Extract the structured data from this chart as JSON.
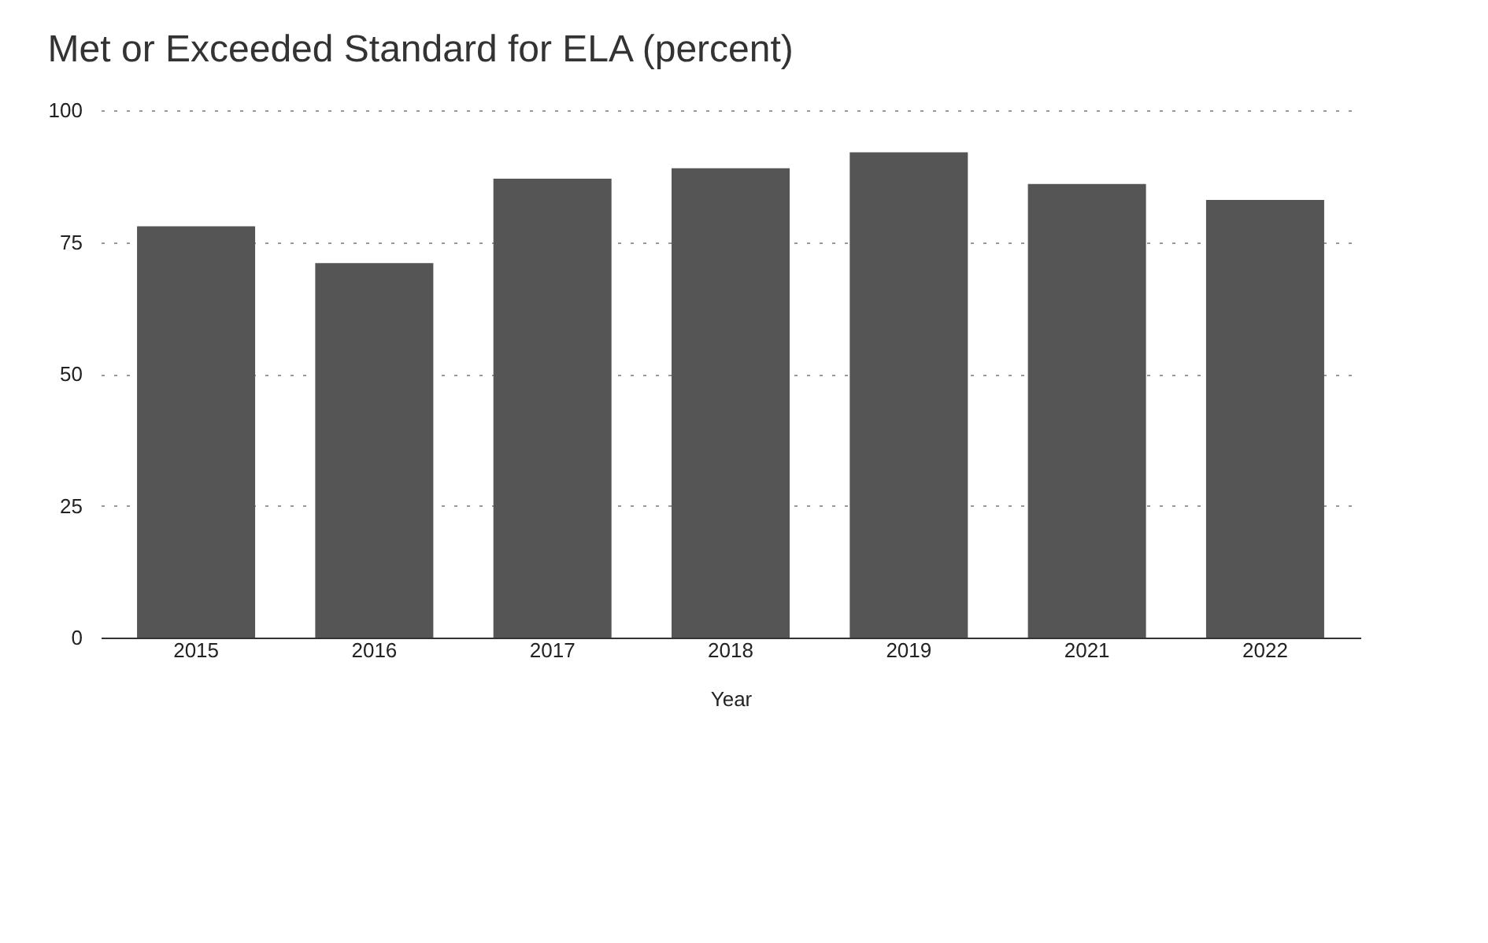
{
  "chart_data": {
    "type": "bar",
    "title": "Met or Exceeded Standard for ELA (percent)",
    "xlabel": "Year",
    "categories": [
      "2015",
      "2016",
      "2017",
      "2018",
      "2019",
      "2021",
      "2022"
    ],
    "values": [
      78,
      71,
      87,
      89,
      92,
      86,
      83
    ],
    "color": "#555555",
    "ylim": [
      0,
      100
    ],
    "yticks": [
      0,
      25,
      50,
      75,
      100
    ],
    "grid": "y"
  }
}
